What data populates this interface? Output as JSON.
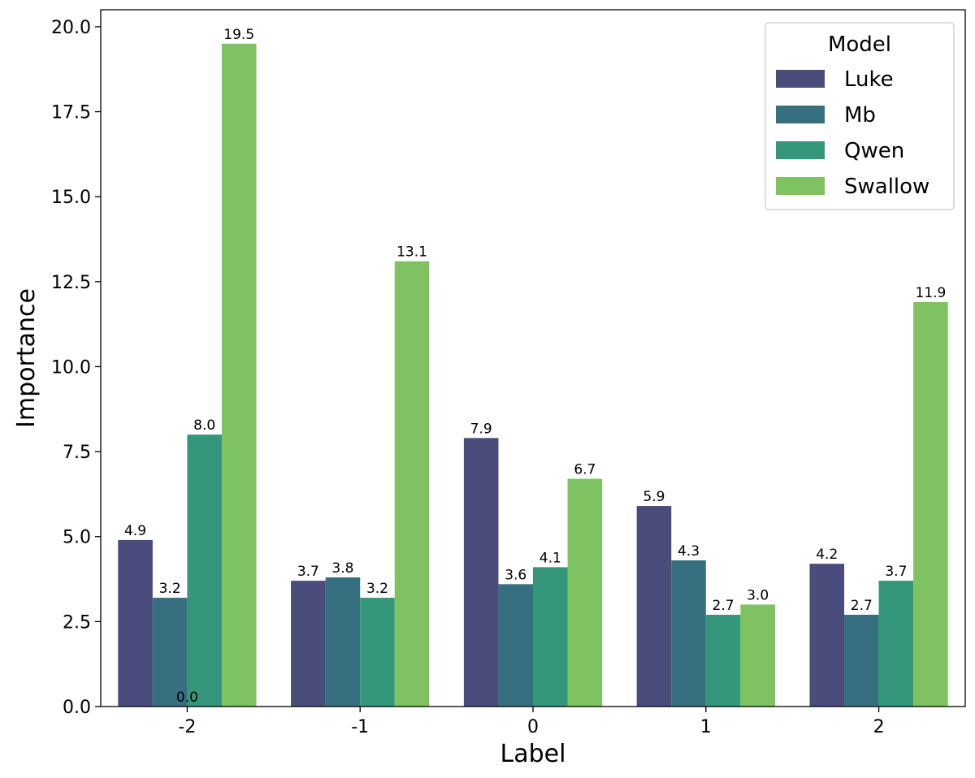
{
  "chart_data": {
    "type": "bar",
    "xlabel": "Label",
    "ylabel": "Importance",
    "categories": [
      "-2",
      "-1",
      "0",
      "1",
      "2"
    ],
    "series": [
      {
        "name": "Luke",
        "color": "#4a4c7c",
        "values": [
          4.9,
          3.7,
          7.9,
          5.9,
          4.2
        ]
      },
      {
        "name": "Mb",
        "color": "#366f80",
        "values": [
          3.2,
          3.8,
          3.6,
          4.3,
          2.7
        ]
      },
      {
        "name": "Qwen",
        "color": "#34967b",
        "values": [
          8.0,
          3.2,
          4.1,
          2.7,
          3.7
        ]
      },
      {
        "name": "Swallow",
        "color": "#7ec262",
        "values": [
          19.5,
          13.1,
          6.7,
          3.0,
          11.9
        ]
      }
    ],
    "extra_labels": [
      {
        "category": "-2",
        "text": "0.0"
      }
    ],
    "ylim": [
      0,
      20.5
    ],
    "yticks": [
      "0.0",
      "2.5",
      "5.0",
      "7.5",
      "10.0",
      "12.5",
      "15.0",
      "17.5",
      "20.0"
    ],
    "legend": {
      "title": "Model",
      "position": "top-right"
    },
    "grid": false
  }
}
